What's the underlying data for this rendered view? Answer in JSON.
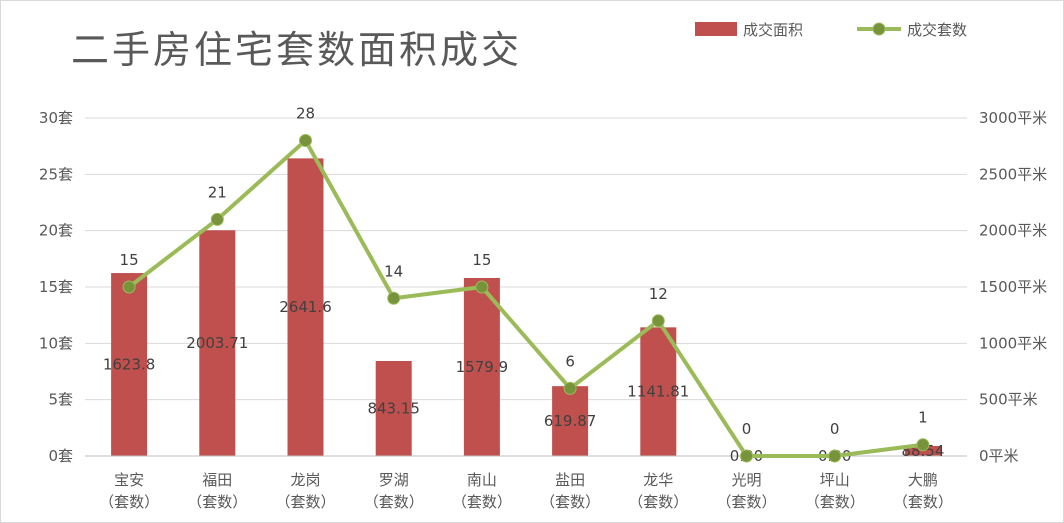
{
  "chart_data": {
    "type": "bar",
    "title": "二手房住宅套数面积成交",
    "categories": [
      [
        "宝安",
        "（套数）"
      ],
      [
        "福田",
        "（套数）"
      ],
      [
        "龙岗",
        "（套数）"
      ],
      [
        "罗湖",
        "（套数）"
      ],
      [
        "南山",
        "（套数）"
      ],
      [
        "盐田",
        "（套数）"
      ],
      [
        "龙华",
        "（套数）"
      ],
      [
        "光明",
        "（套数）"
      ],
      [
        "坪山",
        "（套数）"
      ],
      [
        "大鹏",
        "（套数）"
      ]
    ],
    "series": [
      {
        "name": "成交面积",
        "kind": "bar",
        "axis": "right",
        "color": "#c0504d",
        "values": [
          1623.8,
          2003.71,
          2641.6,
          843.15,
          1579.9,
          619.87,
          1141.81,
          0.0,
          0.0,
          88.54
        ],
        "labels": [
          "1623.8",
          "2003.71",
          "2641.6",
          "843.15",
          "1579.9",
          "619.87",
          "1141.81",
          "0.00",
          "0.00",
          "88.54"
        ]
      },
      {
        "name": "成交套数",
        "kind": "line",
        "axis": "left",
        "color": "#9bbb59",
        "marker_color": "#77933c",
        "values": [
          15,
          21,
          28,
          14,
          15,
          6,
          12,
          0,
          0,
          1
        ],
        "labels": [
          "15",
          "21",
          "28",
          "14",
          "15",
          "6",
          "12",
          "0",
          "0",
          "1"
        ]
      }
    ],
    "left_axis": {
      "ylim": [
        0,
        30
      ],
      "ticks": [
        "0套",
        "5套",
        "10套",
        "15套",
        "20套",
        "25套",
        "30套"
      ]
    },
    "right_axis": {
      "ylim": [
        0,
        3000
      ],
      "ticks": [
        "0平米",
        "500平米",
        "1000平米",
        "1500平米",
        "2000平米",
        "2500平米",
        "3000平米"
      ]
    },
    "grid": true,
    "legend_position": "top-right"
  }
}
